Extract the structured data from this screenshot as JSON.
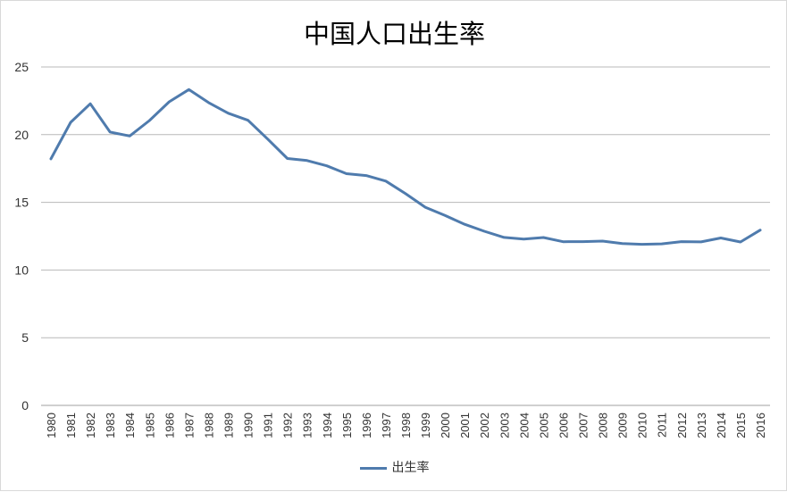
{
  "chart_data": {
    "type": "line",
    "title": "中国人口出生率",
    "xlabel": "",
    "ylabel": "",
    "ylim": [
      0,
      25
    ],
    "yticks": [
      0,
      5,
      10,
      15,
      20,
      25
    ],
    "grid": true,
    "legend_position": "bottom",
    "x": [
      "1980",
      "1981",
      "1982",
      "1983",
      "1984",
      "1985",
      "1986",
      "1987",
      "1988",
      "1989",
      "1990",
      "1991",
      "1992",
      "1993",
      "1994",
      "1995",
      "1996",
      "1997",
      "1998",
      "1999",
      "2000",
      "2001",
      "2002",
      "2003",
      "2004",
      "2005",
      "2006",
      "2007",
      "2008",
      "2009",
      "2010",
      "2011",
      "2012",
      "2013",
      "2014",
      "2015",
      "2016"
    ],
    "series": [
      {
        "name": "出生率",
        "color": "#4f7bad",
        "values": [
          18.21,
          20.91,
          22.28,
          20.19,
          19.9,
          21.04,
          22.43,
          23.33,
          22.37,
          21.58,
          21.06,
          19.68,
          18.24,
          18.09,
          17.7,
          17.12,
          16.98,
          16.57,
          15.64,
          14.64,
          14.03,
          13.38,
          12.86,
          12.41,
          12.29,
          12.4,
          12.09,
          12.1,
          12.14,
          11.95,
          11.9,
          11.93,
          12.1,
          12.08,
          12.37,
          12.07,
          12.95
        ]
      }
    ]
  }
}
